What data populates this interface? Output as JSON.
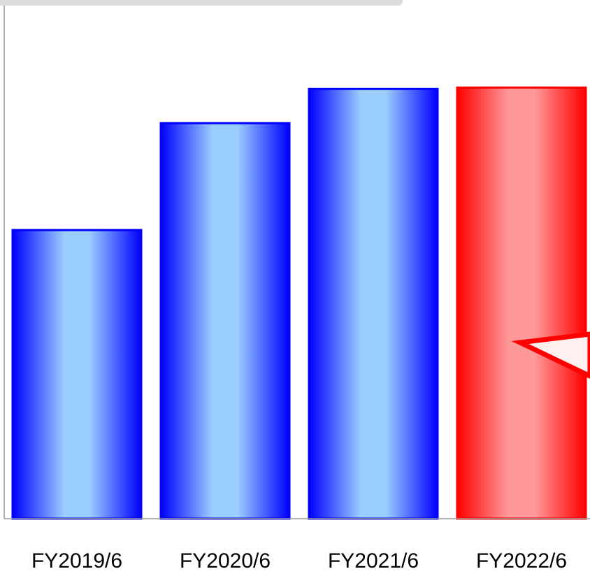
{
  "chart_data": {
    "type": "bar",
    "categories": [
      "FY2019/6",
      "FY2020/6",
      "FY2021/6",
      "FY2022/6"
    ],
    "values": [
      405,
      555,
      603,
      605
    ],
    "ylim": [
      0,
      720
    ],
    "grid": false,
    "highlight_category": "FY2022/6",
    "colors": {
      "bar": "#0000ff",
      "bar_light": "#99ccff",
      "highlight": "#ff0000",
      "highlight_light": "#ff9999",
      "axis": "#999999",
      "callout_fill": "#fff0f0",
      "callout_stroke": "#ff0000"
    }
  }
}
